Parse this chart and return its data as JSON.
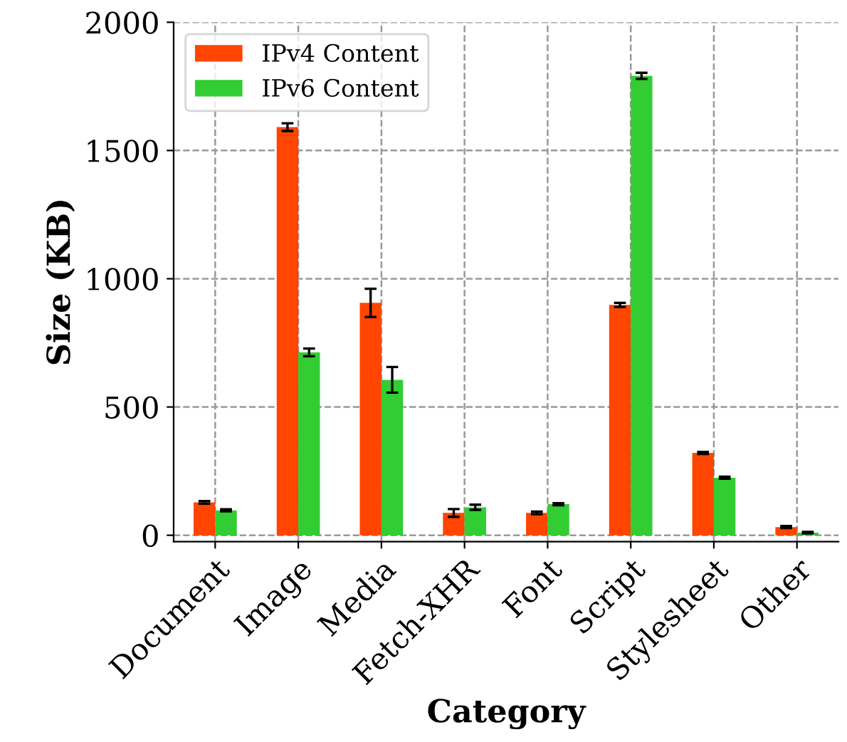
{
  "chart_data": {
    "type": "bar",
    "xlabel": "Category",
    "ylabel": "Size (KB)",
    "categories": [
      "Document",
      "Image",
      "Media",
      "Fetch-XHR",
      "Font",
      "Script",
      "Stylesheet",
      "Other"
    ],
    "series": [
      {
        "name": "IPv4 Content",
        "color": "#ff4500",
        "values": [
          128,
          1591,
          906,
          87,
          87,
          898,
          321,
          32
        ],
        "errors": [
          5,
          15,
          55,
          15,
          5,
          8,
          4,
          4
        ]
      },
      {
        "name": "IPv6 Content",
        "color": "#32cd32",
        "values": [
          97,
          713,
          606,
          109,
          121,
          1791,
          224,
          10
        ],
        "errors": [
          4,
          15,
          50,
          10,
          4,
          12,
          4,
          3
        ]
      }
    ],
    "ylim": [
      -25,
      2000
    ],
    "yticks": [
      0,
      500,
      1000,
      1500,
      2000
    ],
    "grid": true,
    "legend": "top left"
  }
}
